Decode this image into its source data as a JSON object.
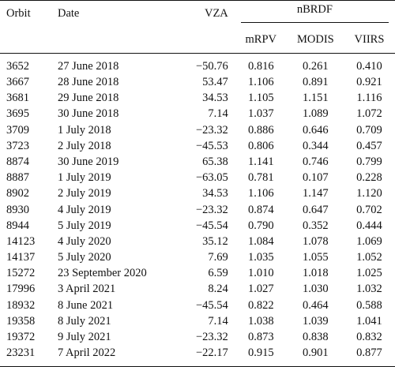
{
  "table": {
    "headers": {
      "orbit": "Orbit",
      "date": "Date",
      "vza": "VZA",
      "group": "nBRDF",
      "mrpv": "mRPV",
      "modis": "MODIS",
      "viirs": "VIIRS"
    },
    "rows": [
      {
        "orbit": "3652",
        "date": "27 June 2018",
        "vza": "−50.76",
        "mrpv": "0.816",
        "modis": "0.261",
        "viirs": "0.410"
      },
      {
        "orbit": "3667",
        "date": "28 June 2018",
        "vza": "53.47",
        "mrpv": "1.106",
        "modis": "0.891",
        "viirs": "0.921"
      },
      {
        "orbit": "3681",
        "date": "29 June 2018",
        "vza": "34.53",
        "mrpv": "1.105",
        "modis": "1.151",
        "viirs": "1.116"
      },
      {
        "orbit": "3695",
        "date": "30 June 2018",
        "vza": "7.14",
        "mrpv": "1.037",
        "modis": "1.089",
        "viirs": "1.072"
      },
      {
        "orbit": "3709",
        "date": "1 July 2018",
        "vza": "−23.32",
        "mrpv": "0.886",
        "modis": "0.646",
        "viirs": "0.709"
      },
      {
        "orbit": "3723",
        "date": "2 July 2018",
        "vza": "−45.53",
        "mrpv": "0.806",
        "modis": "0.344",
        "viirs": "0.457"
      },
      {
        "orbit": "8874",
        "date": "30 June 2019",
        "vza": "65.38",
        "mrpv": "1.141",
        "modis": "0.746",
        "viirs": "0.799"
      },
      {
        "orbit": "8887",
        "date": "1 July 2019",
        "vza": "−63.05",
        "mrpv": "0.781",
        "modis": "0.107",
        "viirs": "0.228"
      },
      {
        "orbit": "8902",
        "date": "2 July 2019",
        "vza": "34.53",
        "mrpv": "1.106",
        "modis": "1.147",
        "viirs": "1.120"
      },
      {
        "orbit": "8930",
        "date": "4 July 2019",
        "vza": "−23.32",
        "mrpv": "0.874",
        "modis": "0.647",
        "viirs": "0.702"
      },
      {
        "orbit": "8944",
        "date": "5 July 2019",
        "vza": "−45.54",
        "mrpv": "0.790",
        "modis": "0.352",
        "viirs": "0.444"
      },
      {
        "orbit": "14123",
        "date": "4 July 2020",
        "vza": "35.12",
        "mrpv": "1.084",
        "modis": "1.078",
        "viirs": "1.069"
      },
      {
        "orbit": "14137",
        "date": "5 July 2020",
        "vza": "7.69",
        "mrpv": "1.035",
        "modis": "1.055",
        "viirs": "1.052"
      },
      {
        "orbit": "15272",
        "date": "23 September 2020",
        "vza": "6.59",
        "mrpv": "1.010",
        "modis": "1.018",
        "viirs": "1.025"
      },
      {
        "orbit": "17996",
        "date": "3 April 2021",
        "vza": "8.24",
        "mrpv": "1.027",
        "modis": "1.030",
        "viirs": "1.032"
      },
      {
        "orbit": "18932",
        "date": "8 June 2021",
        "vza": "−45.54",
        "mrpv": "0.822",
        "modis": "0.464",
        "viirs": "0.588"
      },
      {
        "orbit": "19358",
        "date": "8 July 2021",
        "vza": "7.14",
        "mrpv": "1.038",
        "modis": "1.039",
        "viirs": "1.041"
      },
      {
        "orbit": "19372",
        "date": "9 July 2021",
        "vza": "−23.32",
        "mrpv": "0.873",
        "modis": "0.838",
        "viirs": "0.832"
      },
      {
        "orbit": "23231",
        "date": "7 April 2022",
        "vza": "−22.17",
        "mrpv": "0.915",
        "modis": "0.901",
        "viirs": "0.877"
      }
    ]
  }
}
